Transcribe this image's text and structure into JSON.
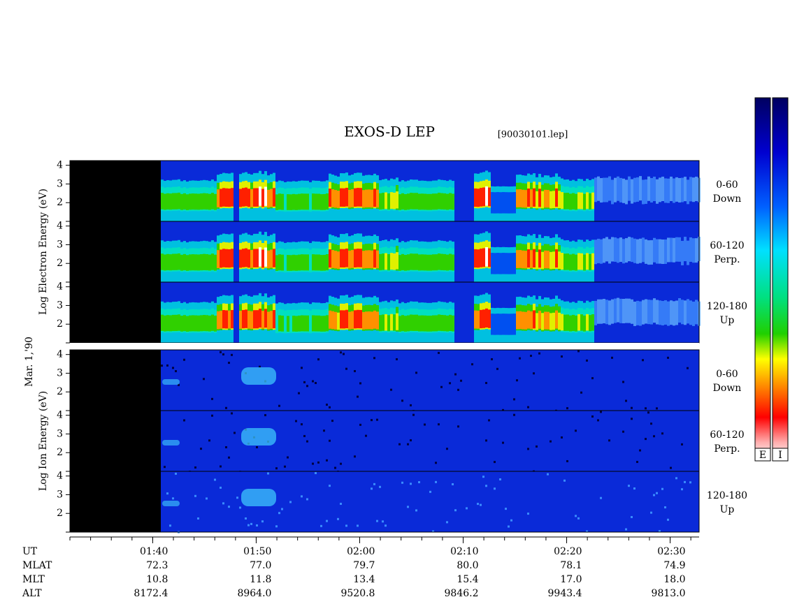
{
  "title": "EXOS-D LEP",
  "file": "[90030101.lep]",
  "date": "Mar. 1,'90",
  "panel_groups": [
    {
      "species": "Electron",
      "axis_label": "Log Electron Energy (eV)",
      "color_key": "E"
    },
    {
      "species": "Ion",
      "axis_label": "Log Ion Energy (eV)",
      "color_key": "I"
    }
  ],
  "pitch_angles": [
    {
      "range": "0-60",
      "direction": "Down"
    },
    {
      "range": "60-120",
      "direction": "Perp."
    },
    {
      "range": "120-180",
      "direction": "Up"
    }
  ],
  "ylim": [
    1,
    4.25
  ],
  "yticks": [
    2,
    3,
    4
  ],
  "xlim": [
    92,
    152.8
  ],
  "xticks": [
    {
      "value": 100,
      "label": "01:40"
    },
    {
      "value": 110,
      "label": "01:50"
    },
    {
      "value": 120,
      "label": "02:00"
    },
    {
      "value": 130,
      "label": "02:10"
    },
    {
      "value": 140,
      "label": "02:20"
    },
    {
      "value": 150,
      "label": "02:30"
    }
  ],
  "x_axis_label": "UT",
  "orbit": [
    {
      "name": "MLAT",
      "values": [
        "72.3",
        "77.0",
        "79.7",
        "80.0",
        "78.1",
        "74.9"
      ]
    },
    {
      "name": "MLT",
      "values": [
        "10.8",
        "11.8",
        "13.4",
        "15.4",
        "17.0",
        "18.0"
      ]
    },
    {
      "name": "ALT",
      "values": [
        "8172.4",
        "8964.0",
        "9520.8",
        "9846.2",
        "9943.4",
        "9813.0"
      ]
    }
  ]
}
